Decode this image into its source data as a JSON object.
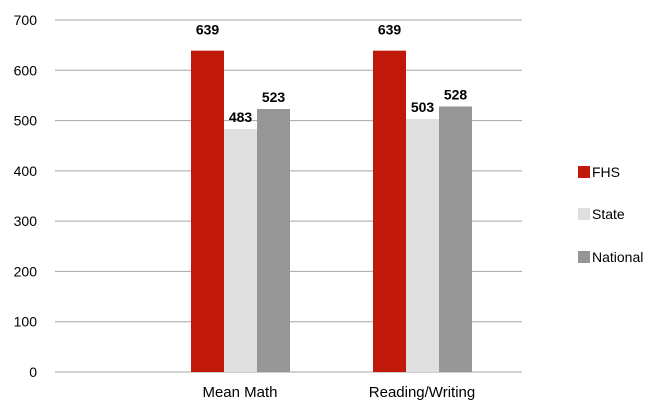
{
  "chart_data": {
    "type": "bar",
    "categories": [
      "Mean Math",
      "Reading/Writing"
    ],
    "series": [
      {
        "name": "FHS",
        "values": [
          639,
          639
        ],
        "color": "#C0190A"
      },
      {
        "name": "State",
        "values": [
          483,
          503
        ],
        "color": "#DFDFDF"
      },
      {
        "name": "National",
        "values": [
          523,
          528
        ],
        "color": "#969696"
      }
    ],
    "title": "",
    "xlabel": "",
    "ylabel": "",
    "ylim": [
      0,
      700
    ],
    "yticks": [
      "0",
      "100",
      "200",
      "300",
      "400",
      "500",
      "600",
      "700"
    ],
    "grid": true,
    "legend_position": "right"
  }
}
